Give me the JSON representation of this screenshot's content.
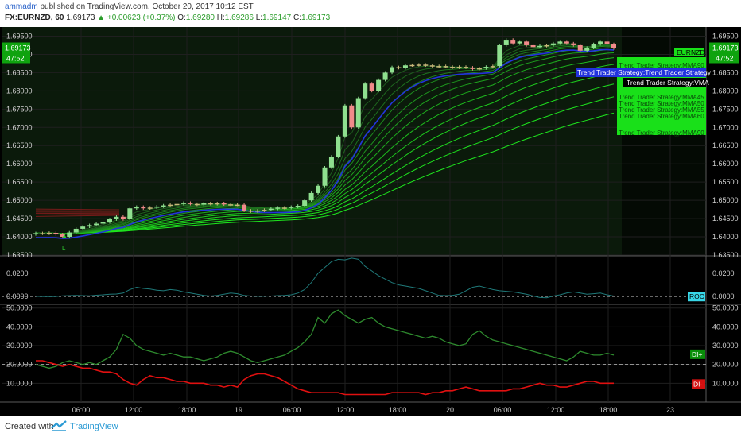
{
  "header": {
    "author": "ammadm",
    "published_text": "published on TradingView.com, October 20, 2017 10:12 EST",
    "symbol": "FX:EURNZD, 60",
    "last": "1.69173",
    "change": "+0.00623 (+0.37%)",
    "open_label": "O:",
    "open": "1.69280",
    "high_label": "H:",
    "high": "1.69286",
    "low_label": "L:",
    "low": "1.69147",
    "close_label": "C:",
    "close": "1.69173"
  },
  "footer": {
    "created_with": "Created with",
    "brand": "TradingView"
  },
  "colors": {
    "background": "#000000",
    "price_bg": "#0b1a0b",
    "grid": "#1f1f1f",
    "up_candle": "#8fe08f",
    "down_candle": "#f08a8a",
    "doji": "#c8b87a",
    "vma": "#2233dd",
    "mma": "#2fcf2f",
    "roc": "#1f7a7a",
    "di_plus": "#2e8b2e",
    "di_minus": "#e01010",
    "label_green": "#19e019",
    "roc_tag": "#38d7e8"
  },
  "chart_data": [
    {
      "type": "candlestick",
      "title": "FX:EURNZD, 60",
      "ylim": [
        1.635,
        1.6975
      ],
      "y_ticks": [
        "1.69500",
        "1.69000",
        "1.68500",
        "1.68000",
        "1.67500",
        "1.67000",
        "1.66500",
        "1.66000",
        "1.65500",
        "1.65000",
        "1.64500",
        "1.64000",
        "1.63500"
      ],
      "x_ticks": [
        "06:00",
        "12:00",
        "18:00",
        "19",
        "06:00",
        "12:00",
        "18:00",
        "20",
        "06:00",
        "12:00",
        "18:00",
        "23"
      ],
      "price_label": "1.69173",
      "countdown": "47:52",
      "signal_marker": "L",
      "closes": [
        1.641,
        1.6409,
        1.6411,
        1.6407,
        1.64,
        1.6412,
        1.6422,
        1.6428,
        1.6432,
        1.6436,
        1.644,
        1.6448,
        1.6455,
        1.6448,
        1.6478,
        1.6482,
        1.6478,
        1.648,
        1.6483,
        1.6486,
        1.6488,
        1.649,
        1.6493,
        1.649,
        1.6488,
        1.6492,
        1.649,
        1.6492,
        1.6489,
        1.6488,
        1.6488,
        1.6472,
        1.647,
        1.6472,
        1.6474,
        1.6477,
        1.648,
        1.6479,
        1.6482,
        1.6485,
        1.65,
        1.652,
        1.654,
        1.659,
        1.662,
        1.6675,
        1.676,
        1.67,
        1.678,
        1.682,
        1.68,
        1.683,
        1.685,
        1.6865,
        1.6863,
        1.687,
        1.6871,
        1.6872,
        1.687,
        1.6868,
        1.6868,
        1.6866,
        1.6864,
        1.6866,
        1.6864,
        1.686,
        1.6862,
        1.6866,
        1.6868,
        1.6925,
        1.694,
        1.693,
        1.6935,
        1.6925,
        1.692,
        1.6923,
        1.6925,
        1.693,
        1.6935,
        1.693,
        1.6925,
        1.691,
        1.6918,
        1.6928,
        1.6935,
        1.6928,
        1.6917
      ],
      "series_labels": [
        "EURNZD",
        "Trend Trader Strategy:MMA90",
        "Trend Trader Strategy:Trend Trader Strategy",
        "Trend Trader Strategy:VMA",
        "Trend Trader Strategy:MMA45",
        "Trend Trader Strategy:MMA50",
        "Trend Trader Strategy:MMA55",
        "Trend Trader Strategy:MMA60",
        "Trend Trader Strategy:MMA90"
      ]
    },
    {
      "type": "line",
      "ylim": [
        -0.006,
        0.035
      ],
      "y_ticks": [
        "0.0200",
        "0.0000"
      ],
      "series": [
        {
          "name": "ROC",
          "values": [
            0.0002,
            0.0001,
            0.0,
            0.0001,
            0.0006,
            0.0008,
            0.001,
            0.0008,
            0.0006,
            0.0012,
            0.0015,
            0.002,
            0.0022,
            0.003,
            0.006,
            0.008,
            0.007,
            0.0065,
            0.0055,
            0.005,
            0.006,
            0.0055,
            0.004,
            0.003,
            0.002,
            0.001,
            0.0005,
            0.001,
            0.002,
            0.003,
            0.0025,
            0.001,
            0.0005,
            0.0002,
            0.0003,
            0.0005,
            0.0008,
            0.001,
            0.0015,
            0.003,
            0.006,
            0.012,
            0.02,
            0.025,
            0.03,
            0.032,
            0.0315,
            0.033,
            0.032,
            0.026,
            0.022,
            0.018,
            0.015,
            0.012,
            0.01,
            0.009,
            0.008,
            0.007,
            0.005,
            0.003,
            0.001,
            0.0008,
            0.001,
            0.002,
            0.005,
            0.008,
            0.009,
            0.0075,
            0.006,
            0.005,
            0.0045,
            0.004,
            0.003,
            0.002,
            0.0005,
            -0.0008,
            -0.001,
            0.0005,
            0.0015,
            0.003,
            0.004,
            0.003,
            0.002,
            0.0025,
            0.003,
            0.0015,
            0.0005
          ]
        }
      ]
    },
    {
      "type": "line",
      "ylim": [
        0,
        52
      ],
      "y_ticks": [
        "50.0000",
        "40.0000",
        "30.0000",
        "20.0000",
        "10.0000"
      ],
      "reference_line": 20,
      "series": [
        {
          "name": "DI+",
          "values": [
            20,
            19,
            18,
            19,
            21,
            22,
            21,
            20,
            21,
            20,
            22,
            24,
            28,
            36,
            34,
            30,
            28,
            27,
            26,
            25,
            26,
            25,
            24,
            24,
            23,
            22,
            23,
            24,
            26,
            27,
            26,
            24,
            22,
            21,
            22,
            23,
            24,
            25,
            27,
            29,
            32,
            36,
            45,
            42,
            47,
            49,
            46,
            44,
            42,
            44,
            45,
            42,
            40,
            39,
            38,
            37,
            36,
            35,
            34,
            35,
            34,
            32,
            31,
            30,
            31,
            36,
            38,
            35,
            33,
            32,
            31,
            30,
            29,
            28,
            27,
            26,
            25,
            24,
            23,
            22,
            24,
            27,
            26,
            25,
            25,
            26,
            25
          ]
        },
        {
          "name": "DI-",
          "values": [
            22,
            22,
            21,
            20,
            19,
            20,
            19,
            18,
            18,
            17,
            16,
            16,
            15,
            12,
            10,
            9,
            12,
            14,
            13,
            13,
            12,
            11,
            11,
            10,
            10,
            10,
            9,
            9,
            8,
            9,
            8,
            12,
            14,
            15,
            15,
            14,
            13,
            11,
            9,
            7,
            6,
            5,
            5,
            5,
            5,
            5,
            4,
            4,
            4,
            4,
            4,
            4,
            4,
            5,
            5,
            5,
            5,
            5,
            4,
            5,
            5,
            6,
            6,
            7,
            8,
            7,
            6,
            6,
            6,
            6,
            6,
            7,
            7,
            8,
            9,
            10,
            9,
            9,
            8,
            8,
            9,
            10,
            11,
            11,
            10,
            10,
            10
          ]
        }
      ]
    }
  ]
}
